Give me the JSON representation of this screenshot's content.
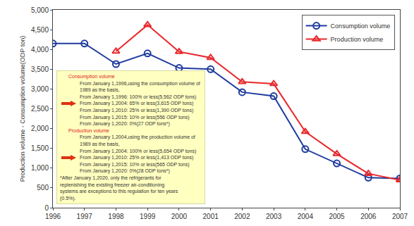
{
  "chart_data": {
    "type": "line",
    "x": [
      1996,
      1997,
      1998,
      1999,
      2000,
      2001,
      2002,
      2003,
      2004,
      2005,
      2006,
      2007
    ],
    "xlim": [
      1996,
      2007
    ],
    "xticks": [
      1996,
      1997,
      1998,
      1999,
      2000,
      2001,
      2002,
      2003,
      2004,
      2005,
      2006,
      2007
    ],
    "ylim": [
      0,
      5000
    ],
    "yticks": [
      0,
      500,
      {
        "value": 1000,
        "label": "1,000"
      },
      {
        "value": 1500,
        "label": "1,500"
      },
      {
        "value": 2000,
        "label": "2,000"
      },
      {
        "value": 2500,
        "label": "2,500"
      },
      {
        "value": 3000,
        "label": "3,000"
      },
      {
        "value": 3500,
        "label": "3,500"
      },
      {
        "value": 4000,
        "label": "4,000"
      },
      {
        "value": 4500,
        "label": "4,500"
      },
      {
        "value": 5000,
        "label": "5,000"
      }
    ],
    "y_label": "Production volume - Consumption volume(ODP ton)",
    "grid": false,
    "legend": "top right",
    "series": [
      {
        "name": "Consumption volume",
        "color": "#1f3b9e",
        "marker": "circle-open",
        "values": [
          4150,
          4150,
          3630,
          3900,
          3530,
          3500,
          2920,
          2820,
          1480,
          1120,
          760,
          740
        ]
      },
      {
        "name": "Production volume",
        "color": "#e8282c",
        "marker": "triangle-up-open",
        "values": [
          null,
          null,
          3950,
          4620,
          3940,
          3790,
          3180,
          3130,
          1920,
          1360,
          860,
          700
        ]
      }
    ],
    "annotations": {
      "sections": [
        {
          "heading": "Consumption volume",
          "lines": [
            "From January 1,1996,using the consumption volume of",
            "1989 as the basis,",
            "From January 1,1996: 100% or less(5,562 ODP tons)",
            "From January 1,2004: 65% or less(3,615 ODP tons)",
            "From January 1,2010: 25% or less(1,390 ODP tons)",
            "From January 1,2015: 10% or less(556 ODP tons)",
            "From January 1,2020: 0%(27 ODP tons*)"
          ]
        },
        {
          "heading": "Production volume",
          "lines": [
            "From January 1,2004,using the production volume of",
            "1989 as the basis,",
            "From January 1,2004: 100% or less(5,654 ODP tons)",
            "From January 1,2010: 25% or less(1,413 ODP tons)",
            "From January 1,2015: 10% or less(565 ODP tons)",
            "From January 1,2020: 0%(28 ODP tons*)"
          ]
        }
      ],
      "footnote": [
        "*After January 1,2020, only the refrigerants for",
        "replenishing the existing freezer air-conditioning",
        "systems are exceptions to this regulation for ten years",
        "(0.5%)."
      ]
    }
  }
}
